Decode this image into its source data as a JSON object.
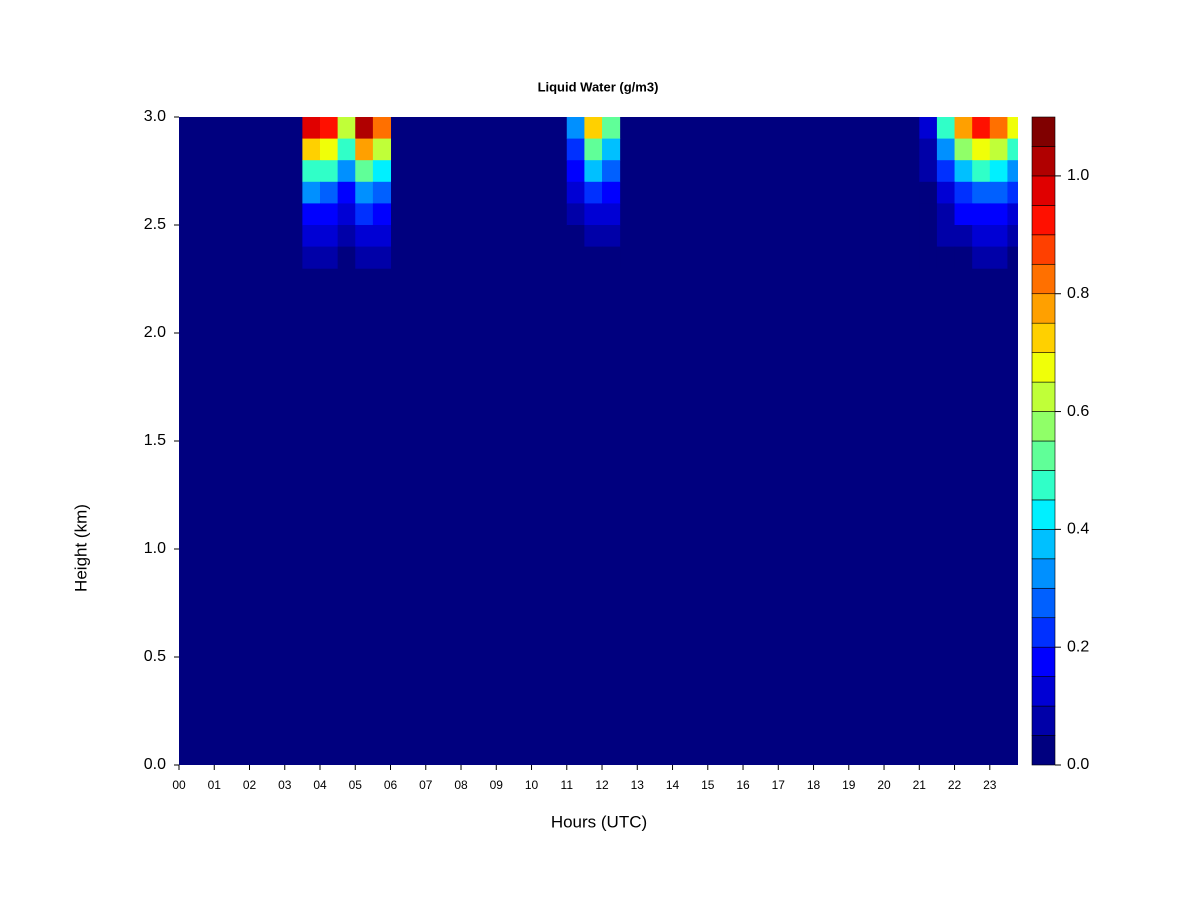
{
  "chart_data": {
    "type": "contour",
    "title": "Liquid Water (g/m3)",
    "x_label": "Hours (UTC)",
    "y_label": "Height (km)",
    "xlim": [
      0,
      23.8
    ],
    "ylim": [
      0,
      3.0
    ],
    "xticks": [
      {
        "value": 0,
        "label": "00"
      },
      {
        "value": 1,
        "label": "01"
      },
      {
        "value": 2,
        "label": "02"
      },
      {
        "value": 3,
        "label": "03"
      },
      {
        "value": 4,
        "label": "04"
      },
      {
        "value": 5,
        "label": "05"
      },
      {
        "value": 6,
        "label": "06"
      },
      {
        "value": 7,
        "label": "07"
      },
      {
        "value": 8,
        "label": "08"
      },
      {
        "value": 9,
        "label": "09"
      },
      {
        "value": 10,
        "label": "10"
      },
      {
        "value": 11,
        "label": "11"
      },
      {
        "value": 12,
        "label": "12"
      },
      {
        "value": 13,
        "label": "13"
      },
      {
        "value": 14,
        "label": "14"
      },
      {
        "value": 15,
        "label": "15"
      },
      {
        "value": 16,
        "label": "16"
      },
      {
        "value": 17,
        "label": "17"
      },
      {
        "value": 18,
        "label": "18"
      },
      {
        "value": 19,
        "label": "19"
      },
      {
        "value": 20,
        "label": "20"
      },
      {
        "value": 21,
        "label": "21"
      },
      {
        "value": 22,
        "label": "22"
      },
      {
        "value": 23,
        "label": "23"
      }
    ],
    "yticks": [
      {
        "value": 0,
        "label": "0.0"
      },
      0.5,
      {
        "value": 1,
        "label": "1.0"
      },
      1.5,
      {
        "value": 2,
        "label": "2.0"
      },
      2.5,
      {
        "value": 3,
        "label": "3.0"
      }
    ],
    "x": [
      3.75,
      4.25,
      4.75,
      5.25,
      5.75,
      11.25,
      11.75,
      12.25,
      21.25,
      21.75,
      22.25,
      22.75,
      23.25,
      23.75
    ],
    "y": [
      2.95,
      2.85,
      2.75,
      2.65,
      2.55,
      2.45,
      2.35
    ],
    "z": [
      [
        0.95,
        0.9,
        0.6,
        1.0,
        0.8,
        0.3,
        0.7,
        0.5,
        0.1,
        0.45,
        0.75,
        0.9,
        0.8,
        0.65
      ],
      [
        0.7,
        0.68,
        0.45,
        0.75,
        0.6,
        0.22,
        0.52,
        0.38,
        0.08,
        0.34,
        0.56,
        0.68,
        0.6,
        0.49
      ],
      [
        0.48,
        0.45,
        0.3,
        0.5,
        0.4,
        0.15,
        0.35,
        0.25,
        0.05,
        0.22,
        0.38,
        0.45,
        0.4,
        0.33
      ],
      [
        0.3,
        0.29,
        0.19,
        0.32,
        0.26,
        0.1,
        0.22,
        0.16,
        0.03,
        0.14,
        0.24,
        0.29,
        0.26,
        0.21
      ],
      [
        0.19,
        0.18,
        0.12,
        0.2,
        0.16,
        0.06,
        0.14,
        0.1,
        0.02,
        0.09,
        0.15,
        0.18,
        0.16,
        0.13
      ],
      [
        0.11,
        0.11,
        0.07,
        0.12,
        0.1,
        0.04,
        0.08,
        0.06,
        0,
        0.05,
        0.09,
        0.11,
        0.1,
        0.08
      ],
      [
        0.06,
        0.05,
        0.04,
        0.06,
        0.05,
        0,
        0.03,
        0,
        0,
        0.02,
        0.04,
        0.05,
        0.05,
        0.04
      ]
    ],
    "levels": [
      0,
      0.05,
      0.1,
      0.15,
      0.2,
      0.25,
      0.3,
      0.35,
      0.4,
      0.45,
      0.5,
      0.55,
      0.6,
      0.65,
      0.7,
      0.75,
      0.8,
      0.85,
      0.9,
      0.95,
      1.0,
      1.05,
      1.1
    ],
    "colors": [
      "#00007f",
      "#0000a8",
      "#0000d4",
      "#0000ff",
      "#0030ff",
      "#0060ff",
      "#0090ff",
      "#00c0ff",
      "#00f0ff",
      "#30ffc8",
      "#60ff98",
      "#90ff68",
      "#c0ff38",
      "#f0ff08",
      "#ffd000",
      "#ffa000",
      "#ff7000",
      "#ff4000",
      "#ff1000",
      "#e00000",
      "#b00000",
      "#800000"
    ],
    "colorbar_ticks": [
      {
        "value": 0,
        "label": "0.0"
      },
      0.2,
      0.4,
      0.6,
      0.8,
      {
        "value": 1.0,
        "label": "1.0"
      }
    ]
  }
}
